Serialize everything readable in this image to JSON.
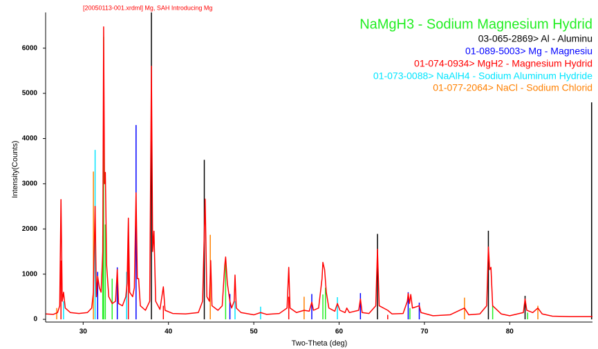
{
  "chart_data": {
    "type": "line",
    "title": "[20050113-001.xrdml] Mg, SAH Introducing Mg",
    "x_label": "Two-Theta (deg)",
    "y_label": "Intensity(Counts)",
    "xlim": [
      25.6,
      89.7
    ],
    "ylim": [
      -60,
      6790
    ],
    "xticks": [
      30,
      40,
      50,
      60,
      70,
      80
    ],
    "yticks": [
      0,
      1000,
      2000,
      3000,
      4000,
      5000,
      6000
    ],
    "series": [
      {
        "color": "#ff0000",
        "x": [
          25.6,
          26.5,
          27.0,
          27.25,
          27.4,
          27.55,
          27.7,
          27.9,
          28.5,
          29.5,
          30.5,
          31.0,
          31.2,
          31.4,
          31.55,
          31.7,
          31.9,
          32.1,
          32.3,
          32.4,
          32.5,
          32.6,
          32.75,
          33.0,
          33.4,
          33.8,
          34.0,
          34.15,
          34.6,
          35.0,
          35.15,
          35.3,
          35.45,
          35.8,
          36.0,
          36.2,
          36.35,
          36.5,
          36.7,
          37.3,
          37.8,
          38.0,
          38.15,
          38.3,
          38.5,
          39.0,
          39.4,
          39.6,
          40.5,
          42.0,
          43.5,
          44.0,
          44.3,
          44.5,
          44.8,
          44.95,
          45.1,
          45.8,
          46.3,
          46.6,
          46.7,
          46.9,
          47.2,
          47.4,
          47.7,
          47.8,
          47.95,
          48.5,
          50.0,
          50.8,
          51.5,
          53.0,
          53.9,
          54.1,
          54.25,
          55.0,
          55.9,
          56.5,
          56.8,
          57.0,
          57.6,
          58.0,
          58.1,
          58.3,
          58.5,
          58.8,
          59.5,
          59.8,
          60.1,
          60.7,
          60.9,
          61.2,
          62.3,
          62.5,
          62.7,
          63.5,
          64.3,
          64.5,
          64.7,
          65.7,
          66.2,
          67.5,
          68.0,
          68.1,
          68.25,
          68.4,
          68.6,
          69.4,
          69.6,
          71.0,
          73.0,
          74.7,
          75.2,
          76.5,
          77.3,
          77.5,
          77.65,
          77.8,
          78.0,
          79.0,
          80.0,
          81.6,
          81.8,
          82.0,
          82.7,
          83.3,
          83.8,
          85.0,
          87.0,
          89.7
        ],
        "values": [
          120,
          110,
          150,
          300,
          2650,
          400,
          600,
          250,
          150,
          130,
          150,
          250,
          600,
          2500,
          500,
          950,
          700,
          600,
          1500,
          6470,
          3000,
          3250,
          1200,
          500,
          350,
          400,
          1100,
          350,
          300,
          500,
          800,
          2240,
          600,
          500,
          700,
          2800,
          900,
          900,
          300,
          200,
          400,
          5600,
          1500,
          1950,
          400,
          220,
          720,
          200,
          130,
          120,
          150,
          400,
          2660,
          500,
          400,
          1300,
          300,
          200,
          300,
          1200,
          1380,
          800,
          400,
          250,
          400,
          980,
          250,
          150,
          100,
          150,
          110,
          130,
          250,
          1150,
          250,
          150,
          200,
          180,
          380,
          200,
          250,
          900,
          1260,
          1100,
          600,
          250,
          180,
          350,
          200,
          150,
          250,
          150,
          200,
          450,
          150,
          130,
          300,
          1550,
          300,
          200,
          120,
          130,
          400,
          570,
          350,
          550,
          250,
          300,
          150,
          80,
          100,
          250,
          100,
          120,
          300,
          1600,
          1100,
          1150,
          300,
          120,
          80,
          150,
          450,
          200,
          150,
          250,
          120,
          70,
          60,
          60
        ]
      }
    ],
    "references": [
      {
        "name": "NaMgH3 - Sodium Magnesium Hydrid",
        "color": "#22ee22",
        "x": [
          32.3,
          32.4,
          32.6,
          33.4,
          46.7,
          58.1,
          58.4,
          68.3,
          78.0,
          82.1
        ],
        "values": [
          1850,
          6250,
          2100,
          900,
          1300,
          550,
          700,
          250,
          300,
          150
        ]
      },
      {
        "name": "03-065-2869> Al - Aluminu",
        "color": "#000000",
        "x": [
          38.0,
          44.2,
          64.5,
          77.5,
          81.8,
          89.6
        ],
        "values": [
          6790,
          3530,
          1890,
          1960,
          520,
          4800
        ]
      },
      {
        "name": "01-089-5003> Mg - Magnesiu",
        "color": "#0000ff",
        "x": [
          31.7,
          34.0,
          36.2,
          47.2,
          56.8,
          62.5,
          68.1,
          69.4
        ],
        "values": [
          1050,
          1150,
          4300,
          560,
          560,
          580,
          600,
          370
        ]
      },
      {
        "name": "01-074-0934> MgH2 - Magnesium Hydrid",
        "color": "#ff0000",
        "x": [
          27.4,
          35.3,
          39.4,
          54.1,
          65.7
        ],
        "values": [
          1300,
          1700,
          300,
          500,
          100
        ]
      },
      {
        "name": "01-073-0088> NaAlH4 - Sodium Aluminum Hydride",
        "color": "#00e5ff",
        "x": [
          27.7,
          31.4,
          35.1,
          47.8,
          50.8,
          59.8
        ],
        "values": [
          400,
          3750,
          1050,
          400,
          280,
          490
        ]
      },
      {
        "name": "01-077-2064> NaCl - Sodium Chlorid",
        "color": "#ff8000",
        "x": [
          26.9,
          31.2,
          44.9,
          55.9,
          74.7,
          83.3
        ],
        "values": [
          250,
          3270,
          1870,
          500,
          480,
          300
        ]
      }
    ]
  }
}
